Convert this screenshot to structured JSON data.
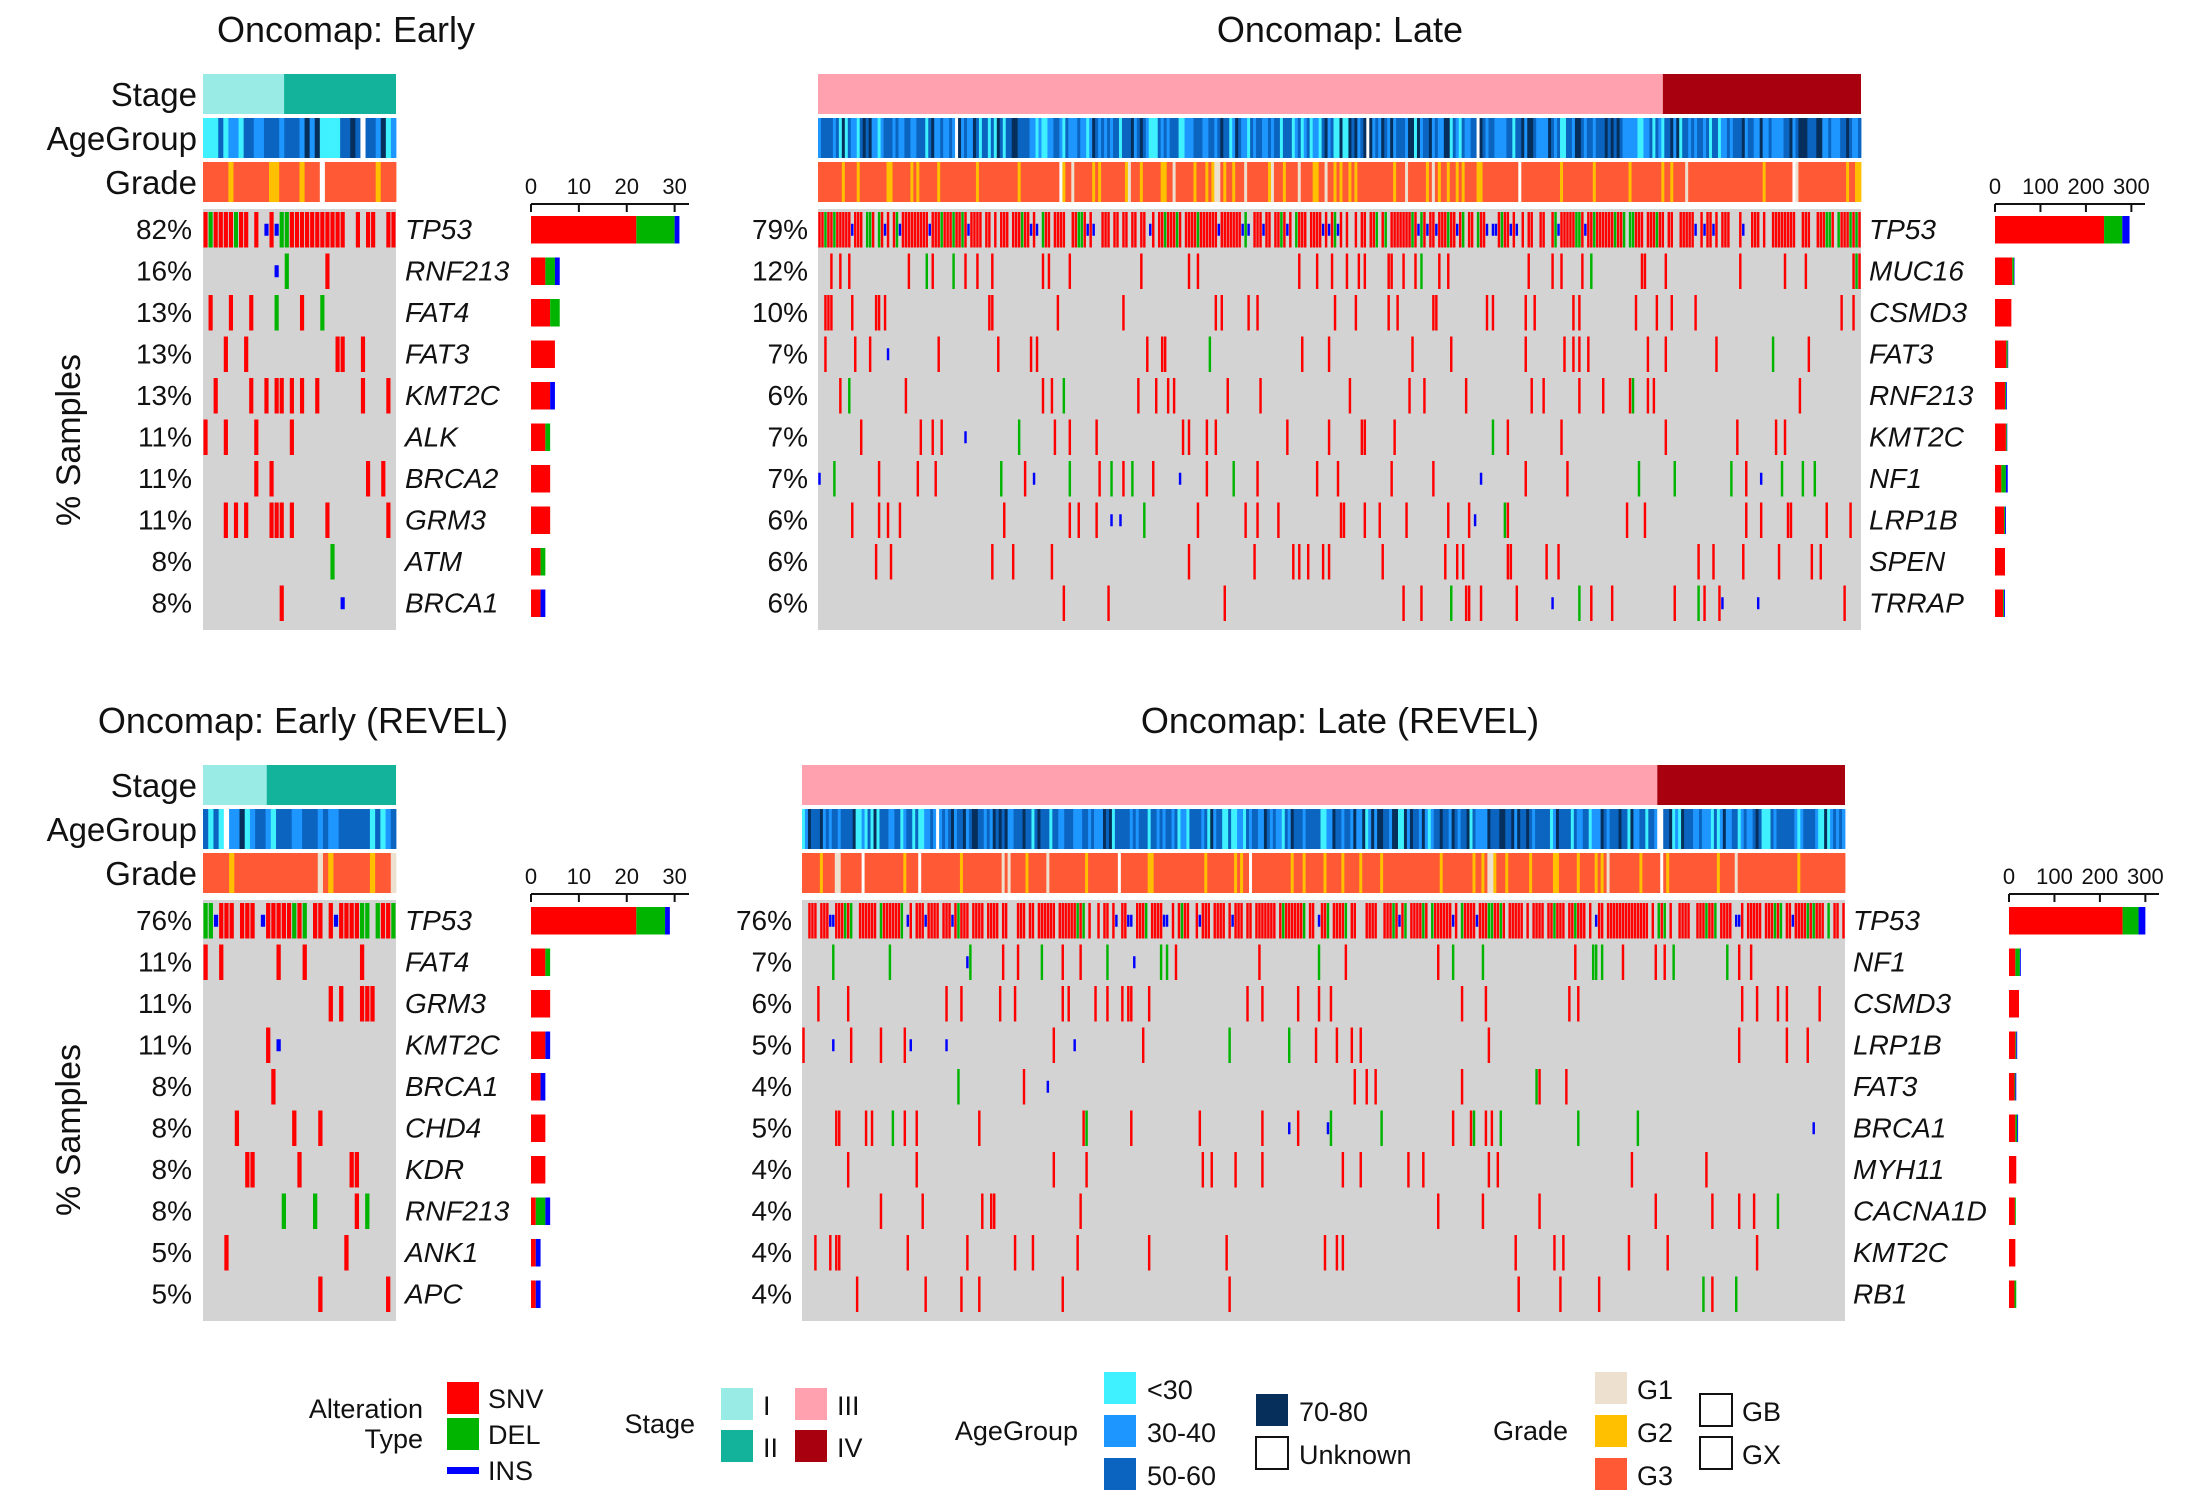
{
  "colors": {
    "SNV": "#ff0000",
    "DEL": "#00b400",
    "INS": "#0000ff",
    "stage_I": "#99ebe6",
    "stage_II": "#12b39a",
    "stage_III": "#ffa1ae",
    "stage_IV": "#a8000f",
    "age_lt30": "#3ff1ff",
    "age_30_40": "#1e96ff",
    "age_50_60": "#0b65c0",
    "age_70_80": "#062f5c",
    "age_unknown": "#ffffff",
    "grade_G1": "#ede0cf",
    "grade_G2": "#ffc000",
    "grade_G3": "#ff5a35",
    "background": "#d3d3d3"
  },
  "y_axis_label": "% Samples",
  "chart_data": [
    {
      "type": "oncoplot",
      "id": "early",
      "title": "Oncomap: Early",
      "n_samples": 38,
      "stage_split": 0.42,
      "track_labels": [
        "Stage",
        "AgeGroup",
        "Grade"
      ],
      "genes": [
        "TP53",
        "RNF213",
        "FAT4",
        "FAT3",
        "KMT2C",
        "ALK",
        "BRCA2",
        "GRM3",
        "ATM",
        "BRCA1"
      ],
      "percents": [
        "82%",
        "16%",
        "13%",
        "13%",
        "13%",
        "11%",
        "11%",
        "11%",
        "8%",
        "8%"
      ],
      "bar_axis": {
        "max": 33,
        "ticks": [
          0,
          10,
          20,
          30
        ]
      },
      "bars": {
        "SNV": [
          22,
          3,
          4,
          5,
          4,
          3,
          4,
          4,
          2,
          2
        ],
        "DEL": [
          8,
          2,
          2,
          0,
          0,
          1,
          0,
          0,
          1,
          0
        ],
        "INS": [
          1,
          1,
          0,
          0,
          1,
          0,
          0,
          0,
          0,
          1
        ]
      }
    },
    {
      "type": "oncoplot",
      "id": "late",
      "title": "Oncomap: Late",
      "n_samples": 350,
      "stage_split": 0.81,
      "track_labels": [],
      "genes": [
        "TP53",
        "MUC16",
        "CSMD3",
        "FAT3",
        "RNF213",
        "KMT2C",
        "NF1",
        "LRP1B",
        "SPEN",
        "TRRAP"
      ],
      "percents": [
        "79%",
        "12%",
        "10%",
        "7%",
        "6%",
        "7%",
        "7%",
        "6%",
        "6%",
        "6%"
      ],
      "bar_axis": {
        "max": 330,
        "ticks": [
          0,
          100,
          200,
          300
        ]
      },
      "bars": {
        "SNV": [
          240,
          38,
          36,
          25,
          22,
          24,
          14,
          20,
          22,
          18
        ],
        "DEL": [
          40,
          4,
          0,
          3,
          2,
          2,
          10,
          2,
          0,
          2
        ],
        "INS": [
          16,
          1,
          0,
          1,
          2,
          1,
          4,
          2,
          0,
          2
        ]
      }
    },
    {
      "type": "oncoplot",
      "id": "early_revel",
      "title": "Oncomap: Early (REVEL)",
      "n_samples": 37,
      "stage_split": 0.33,
      "track_labels": [
        "Stage",
        "AgeGroup",
        "Grade"
      ],
      "genes": [
        "TP53",
        "FAT4",
        "GRM3",
        "KMT2C",
        "BRCA1",
        "CHD4",
        "KDR",
        "RNF213",
        "ANK1",
        "APC"
      ],
      "percents": [
        "76%",
        "11%",
        "11%",
        "11%",
        "8%",
        "8%",
        "8%",
        "8%",
        "5%",
        "5%"
      ],
      "bar_axis": {
        "max": 33,
        "ticks": [
          0,
          10,
          20,
          30
        ]
      },
      "bars": {
        "SNV": [
          22,
          3,
          4,
          3,
          2,
          3,
          3,
          1,
          1,
          1
        ],
        "DEL": [
          6,
          1,
          0,
          0,
          0,
          0,
          0,
          2,
          0,
          0
        ],
        "INS": [
          1,
          0,
          0,
          1,
          1,
          0,
          0,
          1,
          1,
          1
        ]
      }
    },
    {
      "type": "oncoplot",
      "id": "late_revel",
      "title": "Oncomap: Late (REVEL)",
      "n_samples": 350,
      "stage_split": 0.82,
      "track_labels": [],
      "genes": [
        "TP53",
        "NF1",
        "CSMD3",
        "LRP1B",
        "FAT3",
        "BRCA1",
        "MYH11",
        "CACNA1D",
        "KMT2C",
        "RB1"
      ],
      "percents": [
        "76%",
        "7%",
        "6%",
        "5%",
        "4%",
        "5%",
        "4%",
        "4%",
        "4%",
        "4%"
      ],
      "bar_axis": {
        "max": 330,
        "ticks": [
          0,
          100,
          200,
          300
        ]
      },
      "bars": {
        "SNV": [
          250,
          14,
          22,
          14,
          12,
          14,
          16,
          13,
          14,
          12
        ],
        "DEL": [
          35,
          10,
          0,
          2,
          2,
          4,
          0,
          2,
          0,
          4
        ],
        "INS": [
          15,
          2,
          0,
          2,
          2,
          2,
          0,
          0,
          0,
          0
        ]
      }
    }
  ],
  "legend": {
    "alteration": {
      "title_line1": "Alteration",
      "title_line2": "Type",
      "items": [
        "SNV",
        "DEL",
        "INS"
      ]
    },
    "stage": {
      "title": "Stage",
      "items": [
        "I",
        "II",
        "III",
        "IV"
      ]
    },
    "age": {
      "title": "AgeGroup",
      "items": [
        "<30",
        "30-40",
        "50-60",
        "70-80",
        "Unknown"
      ]
    },
    "grade": {
      "title": "Grade",
      "items": [
        "G1",
        "G2",
        "G3",
        "GB",
        "GX"
      ]
    }
  }
}
